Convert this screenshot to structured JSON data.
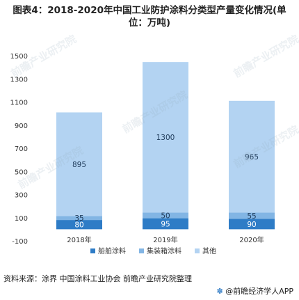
{
  "chart_data": {
    "type": "bar",
    "stacked": true,
    "title": "图表4：2018-2020年中国工业防护涂料分类型产量变化情况(单位：万吨)",
    "categories": [
      "2018年",
      "2019年",
      "2020年"
    ],
    "series": [
      {
        "name": "船舶涂料",
        "values": [
          80,
          95,
          90
        ],
        "color": "#2e7cc6"
      },
      {
        "name": "集装箱涂料",
        "values": [
          35,
          50,
          55
        ],
        "color": "#82b5e4"
      },
      {
        "name": "其他",
        "values": [
          895,
          1300,
          965
        ],
        "color": "#b3d3f2"
      }
    ],
    "ylim": [
      -100,
      1500
    ],
    "yticks": [
      -100,
      100,
      300,
      500,
      700,
      900,
      1100,
      1300,
      1500
    ],
    "grid": false,
    "legend_position": "bottom"
  },
  "source": "资料来源：涂界 中国涂料工业协会 前瞻产业研究院整理",
  "footer": {
    "pin": "✽",
    "text": "@前瞻经济学人APP"
  },
  "watermark": "前瞻产业研究院"
}
